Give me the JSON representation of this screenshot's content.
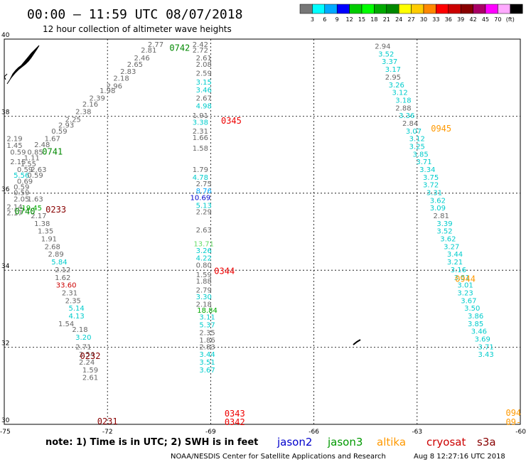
{
  "title": "00:00 – 11:59 UTC 08/07/2018",
  "subtitle": "12 hour collection of altimeter wave heights",
  "note": "note: 1) Time is in UTC; 2) SWH is in feet",
  "footer_left": "NOAA/NESDIS Center for Satellite Applications and Research",
  "footer_right": "Aug  8 12:27:16 UTC 2018",
  "colorbar": {
    "colors": [
      "#777777",
      "#00ffff",
      "#00aaff",
      "#0000ff",
      "#00cc00",
      "#00ff00",
      "#00aa00",
      "#008800",
      "#ffff00",
      "#ffcc00",
      "#ff8800",
      "#ff0000",
      "#cc0000",
      "#880000",
      "#aa0066",
      "#ff00ff",
      "#ffaaff",
      "#000000"
    ],
    "labels": [
      "3",
      "6",
      "9",
      "12",
      "15",
      "18",
      "21",
      "24",
      "27",
      "30",
      "33",
      "36",
      "39",
      "42",
      "45",
      "70",
      "(ft)"
    ]
  },
  "legend": [
    {
      "name": "jason2",
      "color": "#0000cc"
    },
    {
      "name": "jason3",
      "color": "#009900"
    },
    {
      "name": "altika",
      "color": "#ff9900"
    },
    {
      "name": "cryosat",
      "color": "#cc0000"
    },
    {
      "name": "s3a",
      "color": "#880000"
    }
  ],
  "chart_data": {
    "type": "scatter",
    "xlim": [
      -75,
      -60
    ],
    "ylim": [
      30,
      40
    ],
    "x_ticks": [
      "-75",
      "-72",
      "-69",
      "-66",
      "-63",
      "-60"
    ],
    "y_ticks": [
      "30",
      "32",
      "34",
      "36",
      "38",
      "40"
    ],
    "grid": true,
    "time_labels": [
      {
        "text": "0742",
        "lon": -69.9,
        "lat": 39.7,
        "color": "#008800"
      },
      {
        "text": "0741",
        "lon": -73.6,
        "lat": 37.0,
        "color": "#008800"
      },
      {
        "text": "0740",
        "lon": -74.4,
        "lat": 35.45,
        "color": "#008800"
      },
      {
        "text": "0233",
        "lon": -73.5,
        "lat": 35.5,
        "color": "#880000"
      },
      {
        "text": "0232",
        "lon": -72.5,
        "lat": 31.7,
        "color": "#880000"
      },
      {
        "text": "0231",
        "lon": -72.0,
        "lat": 30.0,
        "color": "#880000"
      },
      {
        "text": "0345",
        "lon": -68.4,
        "lat": 37.8,
        "color": "#ee0000"
      },
      {
        "text": "0344",
        "lon": -68.6,
        "lat": 33.9,
        "color": "#ee0000"
      },
      {
        "text": "0343",
        "lon": -68.3,
        "lat": 30.2,
        "color": "#ee0000"
      },
      {
        "text": "0342",
        "lon": -68.3,
        "lat": 29.98,
        "color": "#ee0000"
      },
      {
        "text": "0945",
        "lon": -62.3,
        "lat": 37.6,
        "color": "#ff9900"
      },
      {
        "text": "0944",
        "lon": -61.6,
        "lat": 33.7,
        "color": "#ff9900"
      },
      {
        "text": "094",
        "lon": -60.2,
        "lat": 30.22,
        "color": "#ff9900"
      },
      {
        "text": "09-",
        "lon": -60.2,
        "lat": 29.98,
        "color": "#ff9900"
      }
    ],
    "points": [
      {
        "lon": -70.6,
        "lat": 39.8,
        "v": "2.77",
        "c": "#666666"
      },
      {
        "lon": -69.3,
        "lat": 39.8,
        "v": "2.42",
        "c": "#666666"
      },
      {
        "lon": -70.8,
        "lat": 39.65,
        "v": "2.81",
        "c": "#666666"
      },
      {
        "lon": -69.3,
        "lat": 39.65,
        "v": "2.72",
        "c": "#666666"
      },
      {
        "lon": -71.0,
        "lat": 39.45,
        "v": "2.46",
        "c": "#666666"
      },
      {
        "lon": -69.2,
        "lat": 39.45,
        "v": "2.61",
        "c": "#666666"
      },
      {
        "lon": -71.2,
        "lat": 39.28,
        "v": "2.65",
        "c": "#666666"
      },
      {
        "lon": -69.2,
        "lat": 39.28,
        "v": "2.08",
        "c": "#666666"
      },
      {
        "lon": -71.4,
        "lat": 39.1,
        "v": "2.83",
        "c": "#666666"
      },
      {
        "lon": -69.2,
        "lat": 39.05,
        "v": "2.59",
        "c": "#666666"
      },
      {
        "lon": -71.6,
        "lat": 38.92,
        "v": "2.18",
        "c": "#666666"
      },
      {
        "lon": -69.2,
        "lat": 38.82,
        "v": "3.15",
        "c": "#00cccc"
      },
      {
        "lon": -71.8,
        "lat": 38.72,
        "v": "2.96",
        "c": "#666666"
      },
      {
        "lon": -69.2,
        "lat": 38.62,
        "v": "3.46",
        "c": "#00cccc"
      },
      {
        "lon": -72.0,
        "lat": 38.6,
        "v": "1.98",
        "c": "#666666"
      },
      {
        "lon": -72.3,
        "lat": 38.4,
        "v": "2.39",
        "c": "#666666"
      },
      {
        "lon": -69.2,
        "lat": 38.4,
        "v": "2.67",
        "c": "#666666"
      },
      {
        "lon": -72.5,
        "lat": 38.25,
        "v": "2.16",
        "c": "#666666"
      },
      {
        "lon": -69.2,
        "lat": 38.2,
        "v": "4.98",
        "c": "#00cccc"
      },
      {
        "lon": -72.7,
        "lat": 38.05,
        "v": "2.38",
        "c": "#666666"
      },
      {
        "lon": -69.3,
        "lat": 37.95,
        "v": "1.91",
        "c": "#666666"
      },
      {
        "lon": -73.0,
        "lat": 37.85,
        "v": "2.25",
        "c": "#666666"
      },
      {
        "lon": -69.3,
        "lat": 37.78,
        "v": "3.38",
        "c": "#00cccc"
      },
      {
        "lon": -73.2,
        "lat": 37.7,
        "v": "2.93",
        "c": "#666666"
      },
      {
        "lon": -73.4,
        "lat": 37.55,
        "v": "0.59",
        "c": "#666666"
      },
      {
        "lon": -69.3,
        "lat": 37.55,
        "v": "2.31",
        "c": "#666666"
      },
      {
        "lon": -74.7,
        "lat": 37.35,
        "v": "2.19",
        "c": "#666666"
      },
      {
        "lon": -73.6,
        "lat": 37.35,
        "v": "1.67",
        "c": "#666666"
      },
      {
        "lon": -69.3,
        "lat": 37.38,
        "v": "1.66",
        "c": "#666666"
      },
      {
        "lon": -74.7,
        "lat": 37.18,
        "v": "1.45",
        "c": "#666666"
      },
      {
        "lon": -73.9,
        "lat": 37.2,
        "v": "2.48",
        "c": "#666666"
      },
      {
        "lon": -69.3,
        "lat": 37.1,
        "v": "1.58",
        "c": "#666666"
      },
      {
        "lon": -74.6,
        "lat": 37.0,
        "v": "0.59",
        "c": "#666666"
      },
      {
        "lon": -74.1,
        "lat": 37.0,
        "v": "0.85",
        "c": "#666666"
      },
      {
        "lon": -74.2,
        "lat": 36.85,
        "v": "1.11",
        "c": "#666666"
      },
      {
        "lon": -74.6,
        "lat": 36.75,
        "v": "2.15",
        "c": "#666666"
      },
      {
        "lon": -74.3,
        "lat": 36.7,
        "v": "1.55",
        "c": "#666666"
      },
      {
        "lon": -69.3,
        "lat": 36.55,
        "v": "1.79",
        "c": "#666666"
      },
      {
        "lon": -74.4,
        "lat": 36.55,
        "v": "0.59",
        "c": "#666666"
      },
      {
        "lon": -74.0,
        "lat": 36.55,
        "v": "2.63",
        "c": "#666666"
      },
      {
        "lon": -74.5,
        "lat": 36.4,
        "v": "5.56",
        "c": "#00cccc"
      },
      {
        "lon": -74.1,
        "lat": 36.4,
        "v": "0.59",
        "c": "#666666"
      },
      {
        "lon": -69.3,
        "lat": 36.35,
        "v": "4.78",
        "c": "#00cccc"
      },
      {
        "lon": -74.4,
        "lat": 36.25,
        "v": "0.69",
        "c": "#666666"
      },
      {
        "lon": -69.2,
        "lat": 36.18,
        "v": "2.75",
        "c": "#666666"
      },
      {
        "lon": -74.5,
        "lat": 36.1,
        "v": "0.59",
        "c": "#666666"
      },
      {
        "lon": -74.5,
        "lat": 35.95,
        "v": "0.59",
        "c": "#666666"
      },
      {
        "lon": -69.2,
        "lat": 36.0,
        "v": "8.76",
        "c": "#00aaff"
      },
      {
        "lon": -74.5,
        "lat": 35.78,
        "v": "2.05",
        "c": "#666666"
      },
      {
        "lon": -74.1,
        "lat": 35.78,
        "v": "1.63",
        "c": "#666666"
      },
      {
        "lon": -69.3,
        "lat": 35.82,
        "v": "10.69",
        "c": "#0000cc"
      },
      {
        "lon": -74.7,
        "lat": 35.58,
        "v": "2.14",
        "c": "#666666"
      },
      {
        "lon": -74.2,
        "lat": 35.55,
        "v": "19.45",
        "c": "#00aa00"
      },
      {
        "lon": -69.2,
        "lat": 35.62,
        "v": "5.13",
        "c": "#00cccc"
      },
      {
        "lon": -74.7,
        "lat": 35.42,
        "v": "2.17",
        "c": "#666666"
      },
      {
        "lon": -69.2,
        "lat": 35.45,
        "v": "2.29",
        "c": "#666666"
      },
      {
        "lon": -74.0,
        "lat": 35.35,
        "v": "2.17",
        "c": "#666666"
      },
      {
        "lon": -73.9,
        "lat": 35.15,
        "v": "1.38",
        "c": "#666666"
      },
      {
        "lon": -69.2,
        "lat": 34.98,
        "v": "2.63",
        "c": "#666666"
      },
      {
        "lon": -73.8,
        "lat": 34.95,
        "v": "1.35",
        "c": "#666666"
      },
      {
        "lon": -73.7,
        "lat": 34.75,
        "v": "1.91",
        "c": "#666666"
      },
      {
        "lon": -69.2,
        "lat": 34.62,
        "v": "13.71",
        "c": "#66dd66"
      },
      {
        "lon": -73.6,
        "lat": 34.55,
        "v": "2.68",
        "c": "#666666"
      },
      {
        "lon": -69.2,
        "lat": 34.45,
        "v": "3.26",
        "c": "#00cccc"
      },
      {
        "lon": -73.5,
        "lat": 34.35,
        "v": "2.89",
        "c": "#666666"
      },
      {
        "lon": -73.4,
        "lat": 34.15,
        "v": "5.84",
        "c": "#00cccc"
      },
      {
        "lon": -69.2,
        "lat": 34.25,
        "v": "4.22",
        "c": "#00cccc"
      },
      {
        "lon": -69.2,
        "lat": 34.07,
        "v": "0.80",
        "c": "#666666"
      },
      {
        "lon": -73.3,
        "lat": 33.95,
        "v": "2.12",
        "c": "#666666"
      },
      {
        "lon": -69.2,
        "lat": 33.82,
        "v": "1.59",
        "c": "#666666"
      },
      {
        "lon": -73.3,
        "lat": 33.75,
        "v": "1.62",
        "c": "#666666"
      },
      {
        "lon": -69.2,
        "lat": 33.65,
        "v": "1.88",
        "c": "#666666"
      },
      {
        "lon": -73.2,
        "lat": 33.55,
        "v": "33.60",
        "c": "#cc0000"
      },
      {
        "lon": -69.2,
        "lat": 33.42,
        "v": "2.79",
        "c": "#666666"
      },
      {
        "lon": -73.1,
        "lat": 33.35,
        "v": "2.31",
        "c": "#666666"
      },
      {
        "lon": -69.2,
        "lat": 33.25,
        "v": "3.30",
        "c": "#00cccc"
      },
      {
        "lon": -73.0,
        "lat": 33.15,
        "v": "2.35",
        "c": "#666666"
      },
      {
        "lon": -69.2,
        "lat": 33.05,
        "v": "2.18",
        "c": "#666666"
      },
      {
        "lon": -72.9,
        "lat": 32.95,
        "v": "5.14",
        "c": "#00cccc"
      },
      {
        "lon": -69.1,
        "lat": 32.9,
        "v": "18.84",
        "c": "#00aa00"
      },
      {
        "lon": -72.9,
        "lat": 32.75,
        "v": "4.13",
        "c": "#00cccc"
      },
      {
        "lon": -69.1,
        "lat": 32.72,
        "v": "3.11",
        "c": "#00cccc"
      },
      {
        "lon": -73.2,
        "lat": 32.55,
        "v": "1.54",
        "c": "#666666"
      },
      {
        "lon": -69.1,
        "lat": 32.52,
        "v": "5.37",
        "c": "#00cccc"
      },
      {
        "lon": -72.8,
        "lat": 32.4,
        "v": "2.18",
        "c": "#666666"
      },
      {
        "lon": -69.1,
        "lat": 32.32,
        "v": "2.35",
        "c": "#666666"
      },
      {
        "lon": -72.7,
        "lat": 32.2,
        "v": "3.20",
        "c": "#00cccc"
      },
      {
        "lon": -69.1,
        "lat": 32.12,
        "v": "1.86",
        "c": "#666666"
      },
      {
        "lon": -72.7,
        "lat": 31.95,
        "v": "2.71",
        "c": "#666666"
      },
      {
        "lon": -69.1,
        "lat": 31.95,
        "v": "2.83",
        "c": "#666666"
      },
      {
        "lon": -72.6,
        "lat": 31.75,
        "v": "2.54",
        "c": "#666666"
      },
      {
        "lon": -69.1,
        "lat": 31.75,
        "v": "3.44",
        "c": "#00cccc"
      },
      {
        "lon": -72.6,
        "lat": 31.55,
        "v": "2.24",
        "c": "#666666"
      },
      {
        "lon": -69.1,
        "lat": 31.55,
        "v": "3.51",
        "c": "#00cccc"
      },
      {
        "lon": -72.5,
        "lat": 31.35,
        "v": "1.59",
        "c": "#666666"
      },
      {
        "lon": -69.1,
        "lat": 31.35,
        "v": "3.67",
        "c": "#00cccc"
      },
      {
        "lon": -72.5,
        "lat": 31.15,
        "v": "2.61",
        "c": "#666666"
      },
      {
        "lon": -64.0,
        "lat": 39.75,
        "v": "2.94",
        "c": "#666666"
      },
      {
        "lon": -63.9,
        "lat": 39.55,
        "v": "3.52",
        "c": "#00cccc"
      },
      {
        "lon": -63.8,
        "lat": 39.35,
        "v": "3.37",
        "c": "#00cccc"
      },
      {
        "lon": -63.7,
        "lat": 39.15,
        "v": "3.17",
        "c": "#00cccc"
      },
      {
        "lon": -63.7,
        "lat": 38.95,
        "v": "2.95",
        "c": "#666666"
      },
      {
        "lon": -63.6,
        "lat": 38.75,
        "v": "3.26",
        "c": "#00cccc"
      },
      {
        "lon": -63.5,
        "lat": 38.55,
        "v": "3.12",
        "c": "#00cccc"
      },
      {
        "lon": -63.4,
        "lat": 38.35,
        "v": "3.18",
        "c": "#00cccc"
      },
      {
        "lon": -63.4,
        "lat": 38.15,
        "v": "2.88",
        "c": "#666666"
      },
      {
        "lon": -63.3,
        "lat": 37.95,
        "v": "3.36",
        "c": "#00cccc"
      },
      {
        "lon": -63.2,
        "lat": 37.75,
        "v": "2.84",
        "c": "#666666"
      },
      {
        "lon": -63.1,
        "lat": 37.55,
        "v": "3.07",
        "c": "#00cccc"
      },
      {
        "lon": -63.0,
        "lat": 37.35,
        "v": "3.12",
        "c": "#00cccc"
      },
      {
        "lon": -63.0,
        "lat": 37.15,
        "v": "3.25",
        "c": "#00cccc"
      },
      {
        "lon": -62.9,
        "lat": 36.95,
        "v": "3.85",
        "c": "#00cccc"
      },
      {
        "lon": -62.8,
        "lat": 36.75,
        "v": "3.71",
        "c": "#00cccc"
      },
      {
        "lon": -62.7,
        "lat": 36.55,
        "v": "3.34",
        "c": "#00cccc"
      },
      {
        "lon": -62.6,
        "lat": 36.35,
        "v": "3.75",
        "c": "#00cccc"
      },
      {
        "lon": -62.6,
        "lat": 36.15,
        "v": "3.72",
        "c": "#00cccc"
      },
      {
        "lon": -62.5,
        "lat": 35.95,
        "v": "3.31",
        "c": "#00cccc"
      },
      {
        "lon": -62.4,
        "lat": 35.75,
        "v": "3.62",
        "c": "#00cccc"
      },
      {
        "lon": -62.4,
        "lat": 35.55,
        "v": "3.09",
        "c": "#00cccc"
      },
      {
        "lon": -62.3,
        "lat": 35.35,
        "v": "2.81",
        "c": "#666666"
      },
      {
        "lon": -62.2,
        "lat": 35.15,
        "v": "3.39",
        "c": "#00cccc"
      },
      {
        "lon": -62.2,
        "lat": 34.95,
        "v": "3.52",
        "c": "#00cccc"
      },
      {
        "lon": -62.1,
        "lat": 34.75,
        "v": "3.62",
        "c": "#00cccc"
      },
      {
        "lon": -62.0,
        "lat": 34.55,
        "v": "3.27",
        "c": "#00cccc"
      },
      {
        "lon": -61.9,
        "lat": 34.35,
        "v": "3.44",
        "c": "#00cccc"
      },
      {
        "lon": -61.9,
        "lat": 34.15,
        "v": "3.21",
        "c": "#00cccc"
      },
      {
        "lon": -61.8,
        "lat": 33.95,
        "v": "3.16",
        "c": "#00cccc"
      },
      {
        "lon": -61.7,
        "lat": 33.75,
        "v": "3.51",
        "c": "#00cccc"
      },
      {
        "lon": -61.6,
        "lat": 33.55,
        "v": "3.01",
        "c": "#00cccc"
      },
      {
        "lon": -61.6,
        "lat": 33.35,
        "v": "3.23",
        "c": "#00cccc"
      },
      {
        "lon": -61.5,
        "lat": 33.15,
        "v": "3.67",
        "c": "#00cccc"
      },
      {
        "lon": -61.4,
        "lat": 32.95,
        "v": "3.50",
        "c": "#00cccc"
      },
      {
        "lon": -61.3,
        "lat": 32.75,
        "v": "3.86",
        "c": "#00cccc"
      },
      {
        "lon": -61.3,
        "lat": 32.55,
        "v": "3.85",
        "c": "#00cccc"
      },
      {
        "lon": -61.2,
        "lat": 32.35,
        "v": "3.46",
        "c": "#00cccc"
      },
      {
        "lon": -61.1,
        "lat": 32.15,
        "v": "3.69",
        "c": "#00cccc"
      },
      {
        "lon": -61.0,
        "lat": 31.95,
        "v": "3.71",
        "c": "#00cccc"
      },
      {
        "lon": -61.0,
        "lat": 31.75,
        "v": "3.43",
        "c": "#00cccc"
      }
    ]
  }
}
